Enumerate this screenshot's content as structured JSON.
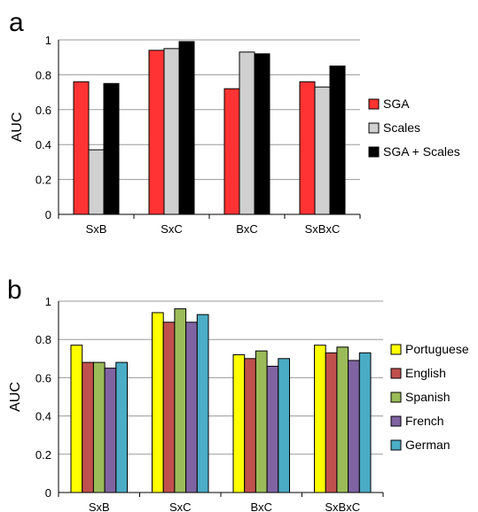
{
  "chart_data": [
    {
      "type": "bar",
      "panel_label": "a",
      "title": "",
      "xlabel": "",
      "ylabel": "AUC",
      "ylim": [
        0,
        1
      ],
      "yticks": [
        0,
        0.2,
        0.4,
        0.6,
        0.8,
        1
      ],
      "categories": [
        "SxB",
        "SxC",
        "BxC",
        "SxBxC"
      ],
      "series": [
        {
          "name": "SGA",
          "color": "#ff3333",
          "values": [
            0.76,
            0.94,
            0.72,
            0.76
          ]
        },
        {
          "name": "Scales",
          "color": "#d0d0d0",
          "values": [
            0.37,
            0.95,
            0.93,
            0.73
          ]
        },
        {
          "name": "SGA + Scales",
          "color": "#000000",
          "values": [
            0.75,
            0.99,
            0.92,
            0.85
          ]
        }
      ],
      "grid": "horizontal",
      "legend_position": "right"
    },
    {
      "type": "bar",
      "panel_label": "b",
      "title": "",
      "xlabel": "",
      "ylabel": "AUC",
      "ylim": [
        0,
        1
      ],
      "yticks": [
        0,
        0.2,
        0.4,
        0.6,
        0.8,
        1
      ],
      "categories": [
        "SxB",
        "SxC",
        "BxC",
        "SxBxC"
      ],
      "series": [
        {
          "name": "Portuguese",
          "color": "#ffff00",
          "values": [
            0.77,
            0.94,
            0.72,
            0.77
          ]
        },
        {
          "name": "English",
          "color": "#c0504d",
          "values": [
            0.68,
            0.89,
            0.7,
            0.73
          ]
        },
        {
          "name": "Spanish",
          "color": "#9bbb59",
          "values": [
            0.68,
            0.96,
            0.74,
            0.76
          ]
        },
        {
          "name": "French",
          "color": "#8064a2",
          "values": [
            0.65,
            0.89,
            0.66,
            0.69
          ]
        },
        {
          "name": "German",
          "color": "#4bacc6",
          "values": [
            0.68,
            0.93,
            0.7,
            0.73
          ]
        }
      ],
      "grid": "horizontal",
      "legend_position": "right"
    }
  ]
}
